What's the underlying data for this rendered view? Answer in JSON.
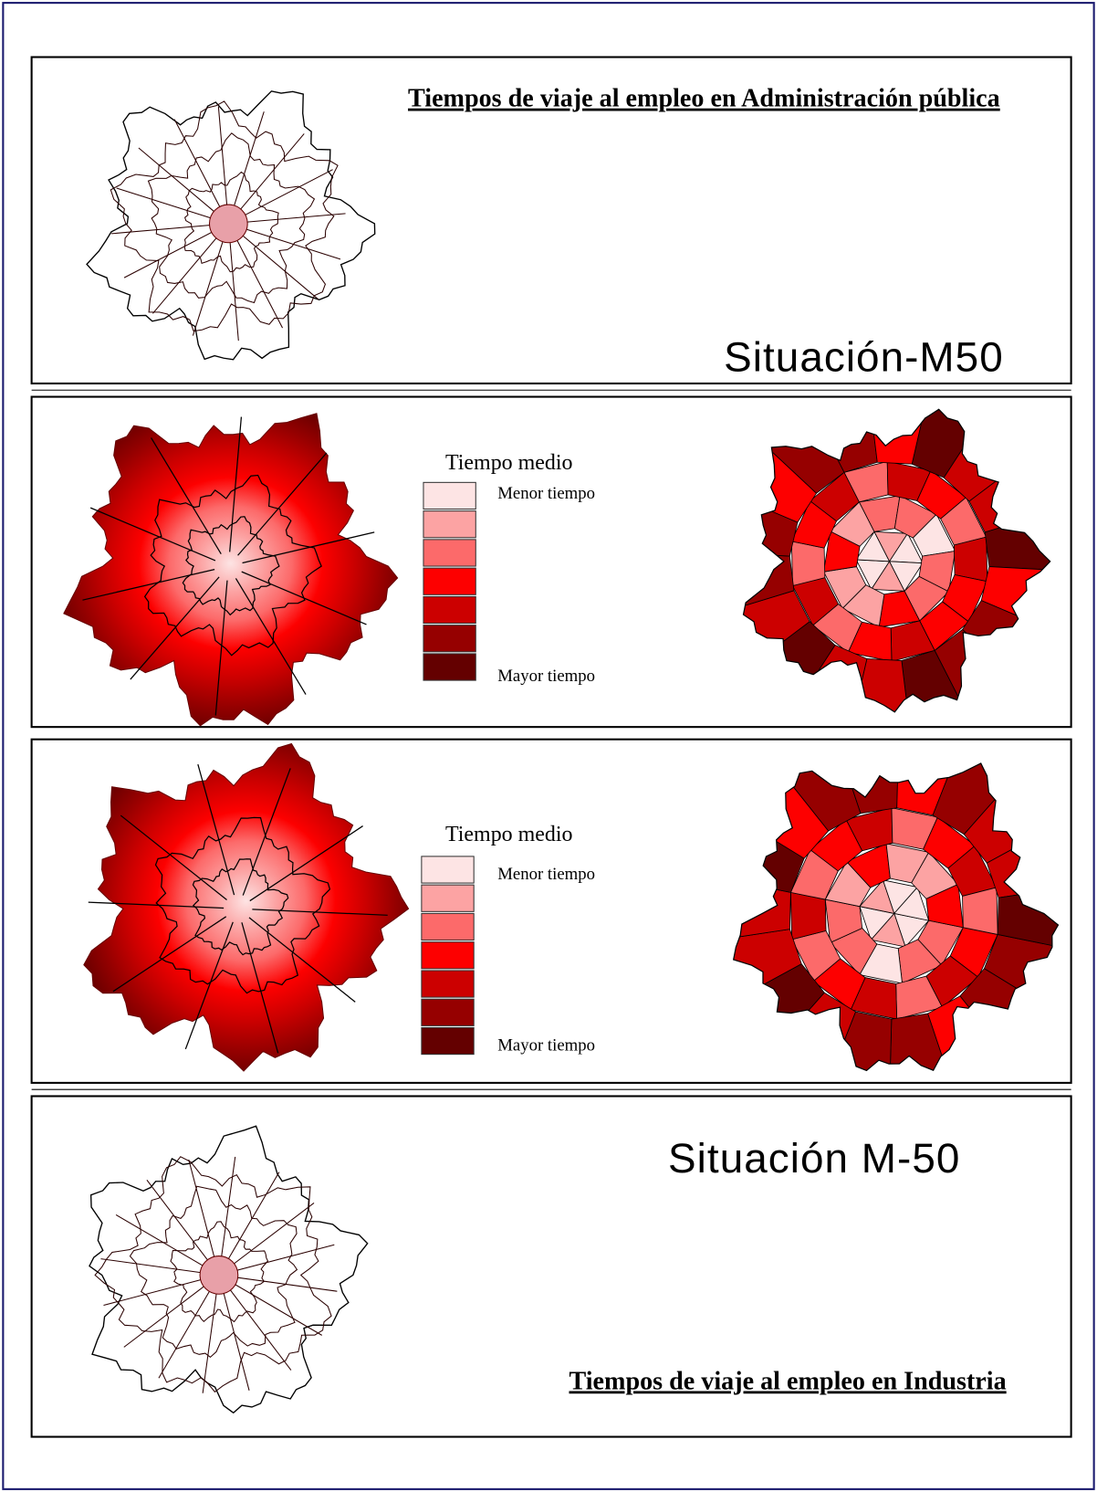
{
  "top_panel": {
    "title": "Tiempos de viaje al empleo en Administración pública",
    "scenario": "Situación-M50"
  },
  "legends": [
    {
      "title": "Tiempo medio",
      "min_label": "Menor tiempo",
      "max_label": "Mayor tiempo"
    },
    {
      "title": "Tiempo medio",
      "min_label": "Menor tiempo",
      "max_label": "Mayor tiempo"
    }
  ],
  "legend_colors": [
    "#fde4e4",
    "#fca3a3",
    "#fc6a6a",
    "#fd0000",
    "#cc0000",
    "#960000",
    "#640000"
  ],
  "bottom_panel": {
    "scenario": "Situación M-50",
    "title": "Tiempos de viaje al empleo en Industria"
  }
}
